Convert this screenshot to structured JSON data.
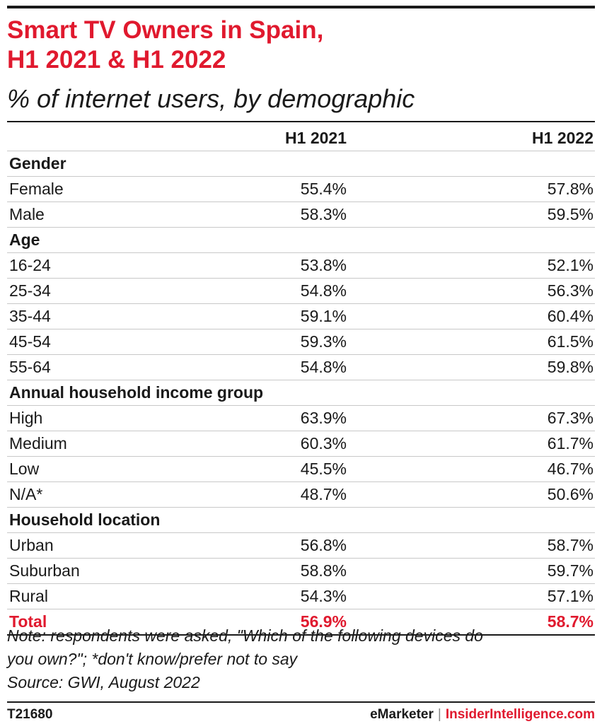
{
  "title_line1": "Smart TV Owners in Spain,",
  "title_line2": "H1 2021 & H1 2022",
  "subtitle": "% of internet users, by demographic",
  "colors": {
    "accent": "#e0192e",
    "text": "#1a1a1a",
    "rule": "#1a1a1a",
    "separator": "#c8c8c8"
  },
  "chart_data": {
    "type": "table",
    "columns": [
      "",
      "H1 2021",
      "H1 2022"
    ],
    "rows": [
      {
        "kind": "section",
        "label": "Gender"
      },
      {
        "kind": "data",
        "label": "Female",
        "values": [
          "55.4%",
          "57.8%"
        ]
      },
      {
        "kind": "data",
        "label": "Male",
        "values": [
          "58.3%",
          "59.5%"
        ]
      },
      {
        "kind": "section",
        "label": "Age"
      },
      {
        "kind": "data",
        "label": "16-24",
        "values": [
          "53.8%",
          "52.1%"
        ]
      },
      {
        "kind": "data",
        "label": "25-34",
        "values": [
          "54.8%",
          "56.3%"
        ]
      },
      {
        "kind": "data",
        "label": "35-44",
        "values": [
          "59.1%",
          "60.4%"
        ]
      },
      {
        "kind": "data",
        "label": "45-54",
        "values": [
          "59.3%",
          "61.5%"
        ]
      },
      {
        "kind": "data",
        "label": "55-64",
        "values": [
          "54.8%",
          "59.8%"
        ]
      },
      {
        "kind": "section",
        "label": "Annual household income group"
      },
      {
        "kind": "data",
        "label": "High",
        "values": [
          "63.9%",
          "67.3%"
        ]
      },
      {
        "kind": "data",
        "label": "Medium",
        "values": [
          "60.3%",
          "61.7%"
        ]
      },
      {
        "kind": "data",
        "label": "Low",
        "values": [
          "45.5%",
          "46.7%"
        ]
      },
      {
        "kind": "data",
        "label": "N/A*",
        "values": [
          "48.7%",
          "50.6%"
        ]
      },
      {
        "kind": "section",
        "label": "Household location"
      },
      {
        "kind": "data",
        "label": "Urban",
        "values": [
          "56.8%",
          "58.7%"
        ]
      },
      {
        "kind": "data",
        "label": "Suburban",
        "values": [
          "58.8%",
          "59.7%"
        ]
      },
      {
        "kind": "data",
        "label": "Rural",
        "values": [
          "54.3%",
          "57.1%"
        ]
      },
      {
        "kind": "total",
        "label": "Total",
        "values": [
          "56.9%",
          "58.7%"
        ]
      }
    ]
  },
  "note_lines": [
    "Note: respondents were asked, \"Which of the following devices do",
    "you own?\"; *don't know/prefer not to say",
    "Source: GWI, August 2022"
  ],
  "footer": {
    "id": "T21680",
    "brand": "eMarketer",
    "separator": "|",
    "brand2": "InsiderIntelligence.com"
  }
}
